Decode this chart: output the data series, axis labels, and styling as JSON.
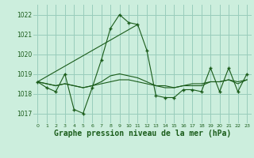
{
  "title": "Graphe pression niveau de la mer (hPa)",
  "background_color": "#cceedd",
  "grid_color": "#99ccbb",
  "line_color": "#1a5c1a",
  "marker_color": "#1a5c1a",
  "ylim": [
    1016.5,
    1022.5
  ],
  "yticks": [
    1017,
    1018,
    1019,
    1020,
    1021,
    1022
  ],
  "xlim": [
    -0.5,
    23.5
  ],
  "xticks": [
    0,
    1,
    2,
    3,
    4,
    5,
    6,
    7,
    8,
    9,
    10,
    11,
    12,
    13,
    14,
    15,
    16,
    17,
    18,
    19,
    20,
    21,
    22,
    23
  ],
  "hours": [
    0,
    1,
    2,
    3,
    4,
    5,
    6,
    7,
    8,
    9,
    10,
    11,
    12,
    13,
    14,
    15,
    16,
    17,
    18,
    19,
    20,
    21,
    22,
    23
  ],
  "pressure_main": [
    1018.6,
    1018.3,
    1018.1,
    1019.0,
    1017.2,
    1017.0,
    1018.3,
    1019.7,
    1021.3,
    1022.0,
    1021.6,
    1021.5,
    1020.2,
    1017.9,
    1017.8,
    1017.8,
    1018.2,
    1018.2,
    1018.1,
    1019.3,
    1018.1,
    1019.3,
    1018.1,
    1019.0
  ],
  "trend_line1": [
    1018.6,
    1018.5,
    1018.4,
    1018.5,
    1018.4,
    1018.3,
    1018.4,
    1018.5,
    1018.6,
    1018.7,
    1018.7,
    1018.6,
    1018.5,
    1018.4,
    1018.4,
    1018.3,
    1018.4,
    1018.5,
    1018.5,
    1018.6,
    1018.6,
    1018.7,
    1018.6,
    1018.7
  ],
  "trend_line2": [
    1018.6,
    1018.5,
    1018.4,
    1018.5,
    1018.4,
    1018.3,
    1018.4,
    1018.6,
    1018.9,
    1019.0,
    1018.9,
    1018.8,
    1018.6,
    1018.4,
    1018.3,
    1018.3,
    1018.4,
    1018.4,
    1018.4,
    1018.6,
    1018.6,
    1018.7,
    1018.5,
    1018.7
  ],
  "trend_line3_x": [
    0,
    11
  ],
  "trend_line3_y": [
    1018.6,
    1021.5
  ],
  "font_color": "#1a5c1a",
  "title_fontsize": 7,
  "tick_fontsize": 5.5
}
